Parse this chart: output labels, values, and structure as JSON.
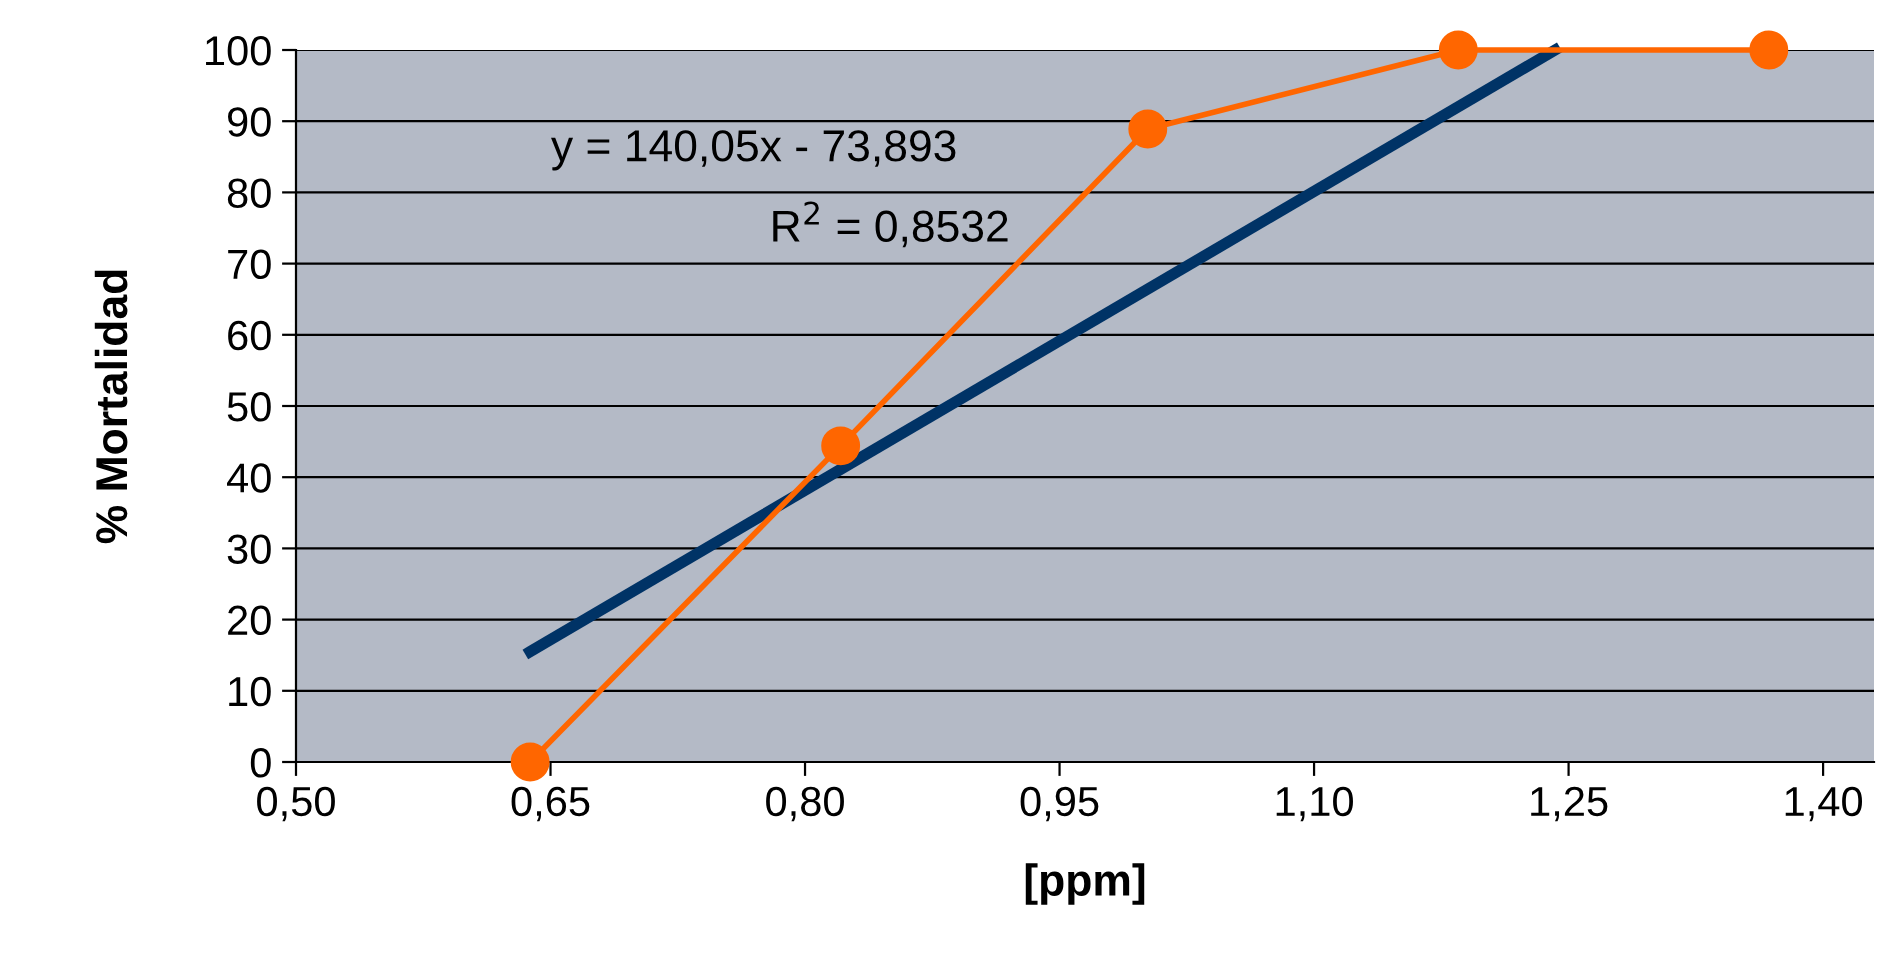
{
  "chart_data": {
    "type": "line",
    "xlabel": "[ppm]",
    "ylabel": "% Mortalidad",
    "series": [
      {
        "color": "#ff6600",
        "marker": "circle",
        "x": [
          0.638,
          0.821,
          1.002,
          1.185,
          1.368
        ],
        "values": [
          0,
          44.4,
          88.9,
          100,
          100
        ]
      },
      {
        "color": "#003366",
        "marker": "none",
        "x": [
          0.638,
          1.242
        ],
        "values": [
          15.5,
          100
        ]
      }
    ],
    "xlim": [
      0.5,
      1.43
    ],
    "xticks": [
      {
        "value": 0.5,
        "label": "0,50"
      },
      {
        "value": 0.65,
        "label": "0,65"
      },
      {
        "value": 0.8,
        "label": "0,80"
      },
      {
        "value": 0.95,
        "label": "0,95"
      },
      {
        "value": 1.1,
        "label": "1,10"
      },
      {
        "value": 1.25,
        "label": "1,25"
      },
      {
        "value": 1.4,
        "label": "1,40"
      }
    ],
    "ylim": [
      0,
      100
    ],
    "yticks": [
      0,
      10,
      20,
      30,
      40,
      50,
      60,
      70,
      80,
      90,
      100
    ],
    "grid": "y",
    "annotations": [
      "y = 140,05x - 73,893",
      "R$^{2}$ = 0,8532"
    ]
  }
}
